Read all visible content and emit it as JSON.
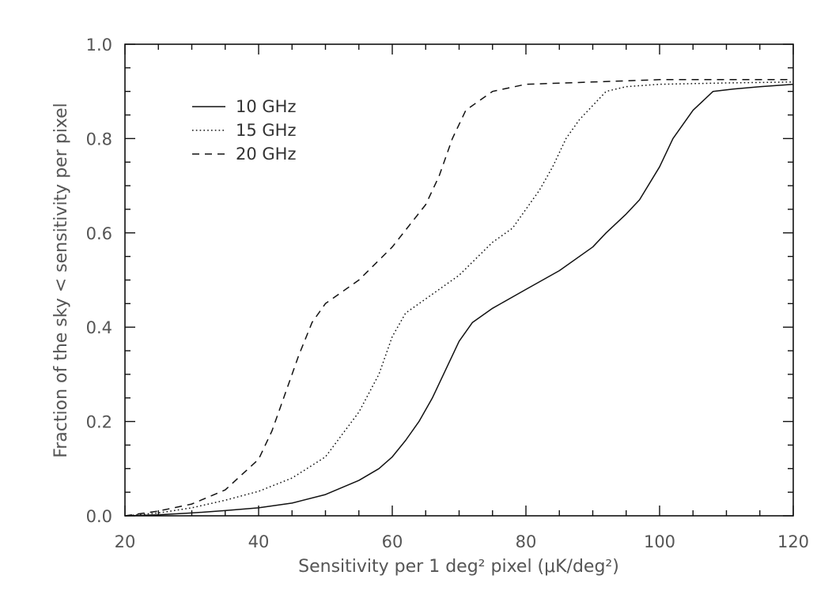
{
  "chart_data": {
    "type": "line",
    "xlabel": "Sensitivity per 1 deg² pixel (μK/deg²)",
    "ylabel": "Fraction of the sky < sensitivity per pixel",
    "xlim": [
      20,
      120
    ],
    "ylim": [
      0,
      1
    ],
    "xticks": [
      "20",
      "40",
      "60",
      "80",
      "100",
      "120"
    ],
    "yticks": [
      "0.0",
      "0.2",
      "0.4",
      "0.6",
      "0.8",
      "1.0"
    ],
    "grid": false,
    "legend_position": "top-left",
    "series": [
      {
        "name": "10 GHz",
        "line_style": "solid",
        "x": [
          20,
          25,
          30,
          35,
          40,
          45,
          50,
          55,
          58,
          60,
          62,
          64,
          66,
          68,
          70,
          72,
          75,
          80,
          85,
          90,
          92,
          95,
          97,
          100,
          102,
          105,
          108,
          111,
          115,
          120
        ],
        "y": [
          0.0,
          0.002,
          0.006,
          0.011,
          0.017,
          0.027,
          0.045,
          0.075,
          0.1,
          0.125,
          0.16,
          0.2,
          0.25,
          0.31,
          0.37,
          0.41,
          0.44,
          0.48,
          0.52,
          0.57,
          0.6,
          0.64,
          0.67,
          0.74,
          0.8,
          0.86,
          0.9,
          0.905,
          0.91,
          0.915
        ]
      },
      {
        "name": "15 GHz",
        "line_style": "dotted",
        "x": [
          20,
          25,
          30,
          35,
          40,
          45,
          50,
          55,
          58,
          60,
          62,
          65,
          70,
          75,
          78,
          80,
          82,
          84,
          86,
          88,
          90,
          92,
          95,
          100,
          110,
          120
        ],
        "y": [
          0.0,
          0.006,
          0.017,
          0.033,
          0.052,
          0.08,
          0.125,
          0.22,
          0.3,
          0.38,
          0.43,
          0.46,
          0.51,
          0.58,
          0.61,
          0.65,
          0.69,
          0.74,
          0.8,
          0.84,
          0.87,
          0.9,
          0.91,
          0.915,
          0.918,
          0.92
        ]
      },
      {
        "name": "20 GHz",
        "line_style": "dashed",
        "x": [
          20,
          25,
          30,
          35,
          40,
          42,
          44,
          46,
          48,
          50,
          55,
          60,
          65,
          67,
          69,
          71,
          73,
          75,
          80,
          90,
          100,
          120
        ],
        "y": [
          0.0,
          0.01,
          0.025,
          0.055,
          0.12,
          0.18,
          0.26,
          0.34,
          0.41,
          0.45,
          0.5,
          0.57,
          0.66,
          0.72,
          0.8,
          0.86,
          0.88,
          0.9,
          0.915,
          0.92,
          0.925,
          0.925
        ]
      }
    ]
  }
}
